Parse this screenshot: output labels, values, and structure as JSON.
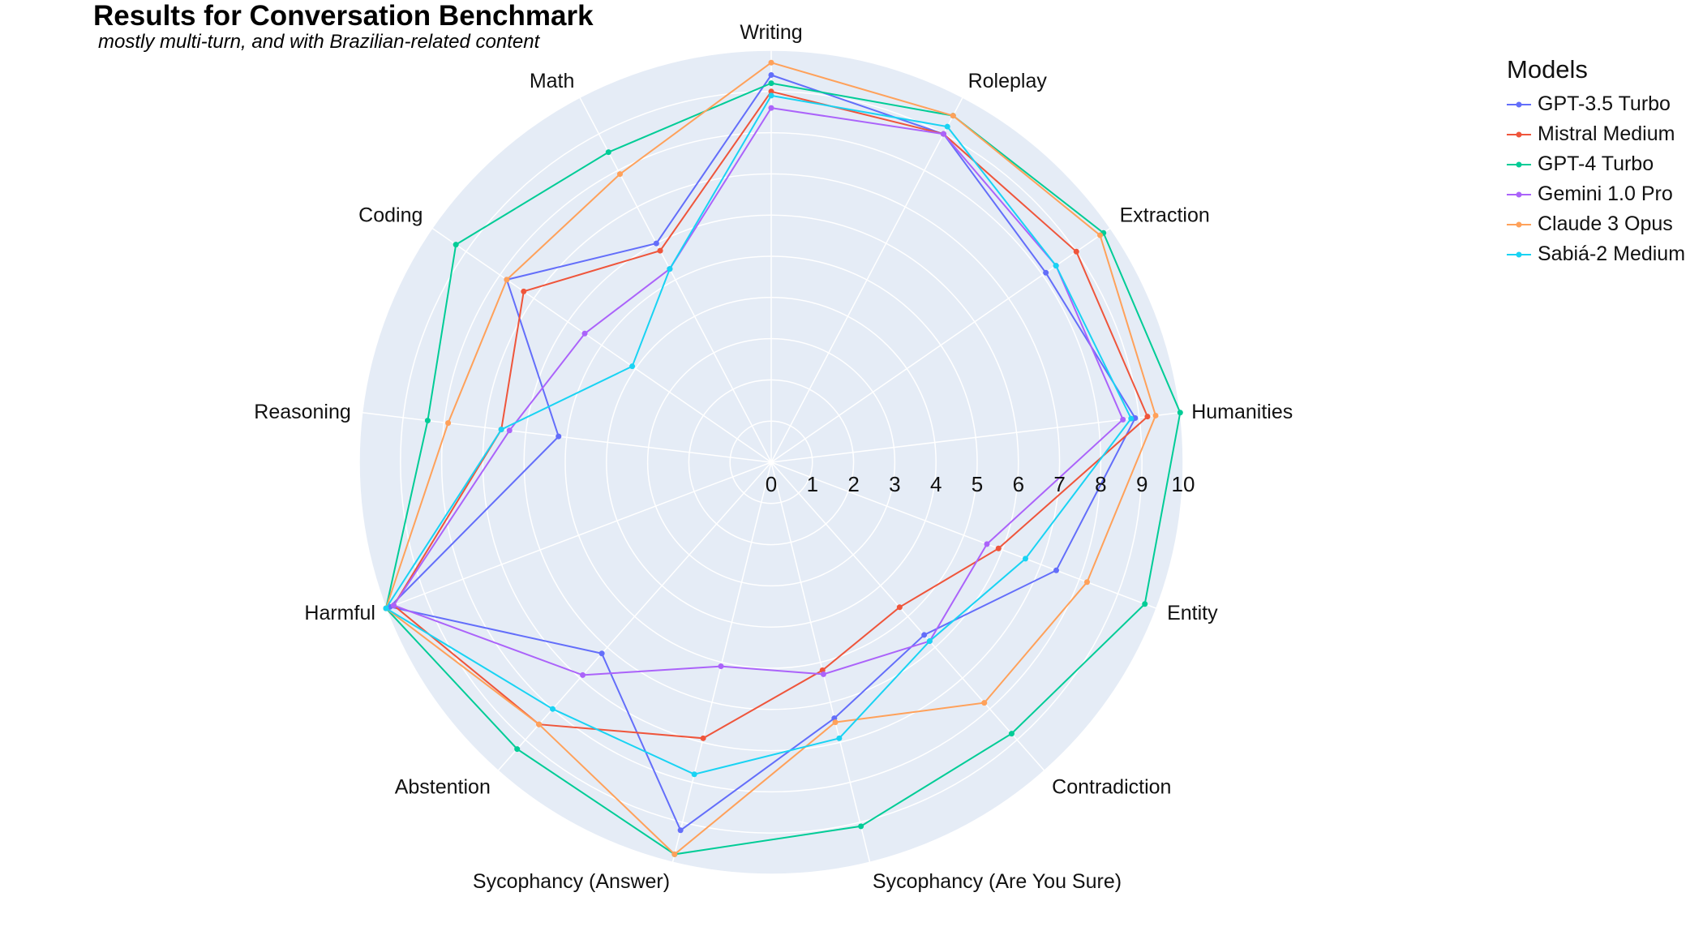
{
  "chart_data": {
    "type": "radar",
    "title": "Results for Conversation Benchmark",
    "subtitle": "mostly multi-turn, and with Brazilian-related content",
    "categories": [
      "Writing",
      "Roleplay",
      "Extraction",
      "Humanities",
      "Entity",
      "Contradiction",
      "Sycophancy (Are You Sure)",
      "Sycophancy (Answer)",
      "Abstention",
      "Harmful",
      "Reasoning",
      "Coding",
      "Math"
    ],
    "radial_range": [
      0,
      10
    ],
    "radial_ticks": [
      "0",
      "1",
      "2",
      "3",
      "4",
      "5",
      "6",
      "7",
      "8",
      "9",
      "10"
    ],
    "legend_title": "Models",
    "legend_position": "top-right",
    "grid": true,
    "series": [
      {
        "name": "GPT-3.5 Turbo",
        "color": "#636efa",
        "values": [
          9.4,
          9.0,
          8.1,
          8.9,
          7.4,
          5.6,
          6.4,
          9.2,
          6.2,
          9.9,
          5.2,
          7.8,
          6.0
        ]
      },
      {
        "name": "Mistral Medium",
        "color": "#ef553b",
        "values": [
          9.0,
          9.0,
          9.0,
          9.2,
          5.9,
          4.7,
          5.2,
          6.9,
          8.5,
          9.8,
          6.6,
          7.3,
          5.8
        ]
      },
      {
        "name": "GPT-4 Turbo",
        "color": "#00cc96",
        "values": [
          9.2,
          9.5,
          9.8,
          10.0,
          9.7,
          8.8,
          9.1,
          9.8,
          9.3,
          10.0,
          8.4,
          9.3,
          8.5
        ]
      },
      {
        "name": "Gemini 1.0 Pro",
        "color": "#ab63fa",
        "values": [
          8.6,
          9.0,
          8.4,
          8.6,
          5.6,
          5.8,
          5.3,
          5.1,
          6.9,
          9.8,
          6.4,
          5.5,
          5.3
        ]
      },
      {
        "name": "Claude 3 Opus",
        "color": "#ffa15a",
        "values": [
          9.7,
          9.5,
          9.7,
          9.4,
          8.2,
          7.8,
          6.5,
          9.8,
          8.5,
          10.0,
          7.9,
          7.8,
          7.9
        ]
      },
      {
        "name": "Sabiá-2 Medium",
        "color": "#19d3f3",
        "values": [
          8.9,
          9.2,
          8.4,
          8.8,
          6.6,
          5.8,
          6.9,
          7.8,
          8.0,
          10.0,
          6.6,
          4.1,
          5.3
        ]
      }
    ]
  }
}
